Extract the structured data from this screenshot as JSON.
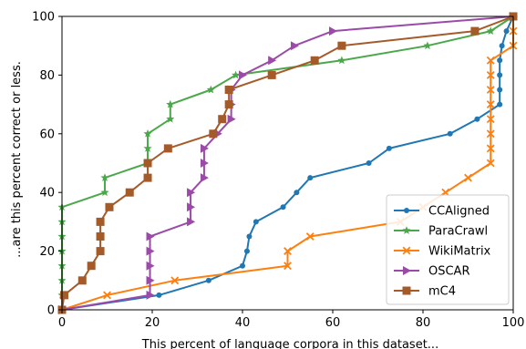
{
  "chart_data": {
    "type": "line",
    "title": "",
    "xlabel": "This percent of language corpora in this dataset...",
    "ylabel": "...are this percent correct or less.",
    "xlim": [
      0,
      100
    ],
    "ylim": [
      0,
      100
    ],
    "xticks": [
      "0",
      "20",
      "40",
      "60",
      "80",
      "100"
    ],
    "yticks": [
      "0",
      "20",
      "40",
      "60",
      "80",
      "100"
    ],
    "grid": false,
    "legend_position": "bottom-right",
    "series": [
      {
        "name": "CCAligned",
        "color": "#1f77b4",
        "marker": "circle",
        "points": [
          [
            0,
            0
          ],
          [
            21.5,
            5
          ],
          [
            32.5,
            10
          ],
          [
            40,
            15
          ],
          [
            41,
            20
          ],
          [
            41.5,
            25
          ],
          [
            43,
            30
          ],
          [
            49,
            35
          ],
          [
            52,
            40
          ],
          [
            55,
            45
          ],
          [
            68,
            50
          ],
          [
            72.5,
            55
          ],
          [
            86,
            60
          ],
          [
            92,
            65
          ],
          [
            97,
            70
          ],
          [
            97,
            75
          ],
          [
            97,
            80
          ],
          [
            97,
            85
          ],
          [
            97.5,
            90
          ],
          [
            98.5,
            95
          ],
          [
            100,
            100
          ]
        ]
      },
      {
        "name": "ParaCrawl",
        "color": "#4aa84a",
        "marker": "star",
        "points": [
          [
            0,
            0
          ],
          [
            0,
            5
          ],
          [
            0,
            10
          ],
          [
            0,
            15
          ],
          [
            0,
            20
          ],
          [
            0,
            25
          ],
          [
            0,
            30
          ],
          [
            0,
            35
          ],
          [
            9.5,
            40
          ],
          [
            9.5,
            45
          ],
          [
            19,
            50
          ],
          [
            19,
            55
          ],
          [
            19,
            60
          ],
          [
            24,
            65
          ],
          [
            24,
            70
          ],
          [
            33,
            75
          ],
          [
            38.5,
            80
          ],
          [
            62,
            85
          ],
          [
            81,
            90
          ],
          [
            95,
            95
          ],
          [
            100,
            100
          ]
        ]
      },
      {
        "name": "WikiMatrix",
        "color": "#ff7f0e",
        "marker": "x",
        "points": [
          [
            0,
            0
          ],
          [
            10,
            5
          ],
          [
            25,
            10
          ],
          [
            50,
            15
          ],
          [
            50,
            20
          ],
          [
            55,
            25
          ],
          [
            75,
            30
          ],
          [
            80,
            35
          ],
          [
            85,
            40
          ],
          [
            90,
            45
          ],
          [
            95,
            50
          ],
          [
            95,
            55
          ],
          [
            95,
            60
          ],
          [
            95,
            65
          ],
          [
            95,
            70
          ],
          [
            95,
            75
          ],
          [
            95,
            80
          ],
          [
            95,
            85
          ],
          [
            100,
            90
          ],
          [
            100,
            95
          ],
          [
            100,
            100
          ]
        ]
      },
      {
        "name": "OSCAR",
        "color": "#9b4aa8",
        "marker": "triangle-right",
        "points": [
          [
            0,
            0
          ],
          [
            19.5,
            5
          ],
          [
            19.5,
            10
          ],
          [
            19.5,
            15
          ],
          [
            19.5,
            20
          ],
          [
            19.5,
            25
          ],
          [
            28.5,
            30
          ],
          [
            28.5,
            35
          ],
          [
            28.5,
            40
          ],
          [
            31.5,
            45
          ],
          [
            31.5,
            50
          ],
          [
            31.5,
            55
          ],
          [
            34.5,
            60
          ],
          [
            37.5,
            65
          ],
          [
            37.5,
            70
          ],
          [
            37.5,
            75
          ],
          [
            40,
            80
          ],
          [
            46.5,
            85
          ],
          [
            51.5,
            90
          ],
          [
            60,
            95
          ],
          [
            100,
            100
          ]
        ]
      },
      {
        "name": "mC4",
        "color": "#a55a2a",
        "marker": "square",
        "points": [
          [
            0,
            0
          ],
          [
            0.5,
            5
          ],
          [
            4.5,
            10
          ],
          [
            6.5,
            15
          ],
          [
            8.5,
            20
          ],
          [
            8.5,
            25
          ],
          [
            8.5,
            30
          ],
          [
            10.5,
            35
          ],
          [
            15,
            40
          ],
          [
            19,
            45
          ],
          [
            19,
            50
          ],
          [
            23.5,
            55
          ],
          [
            33.5,
            60
          ],
          [
            35.5,
            65
          ],
          [
            37,
            70
          ],
          [
            37,
            75
          ],
          [
            46.5,
            80
          ],
          [
            56,
            85
          ],
          [
            62,
            90
          ],
          [
            91.5,
            95
          ],
          [
            100,
            100
          ]
        ]
      }
    ]
  }
}
